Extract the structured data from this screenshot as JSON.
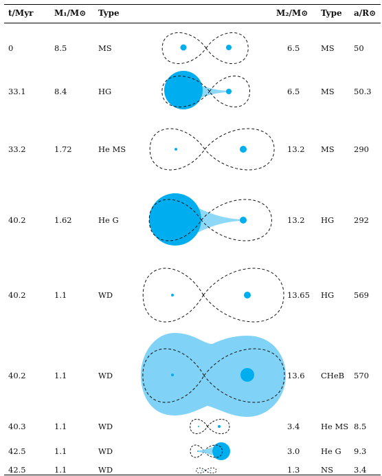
{
  "header": {
    "t": "t/Myr",
    "m1": "M₁/M⊙",
    "type1": "Type",
    "m2": "M₂/M⊙",
    "type2": "Type",
    "a": "a/R⊙"
  },
  "rows": [
    {
      "t": "0",
      "m1": "8.5",
      "type1": "MS",
      "m2": "6.5",
      "type2": "MS",
      "a": "50"
    },
    {
      "t": "33.1",
      "m1": "8.4",
      "type1": "HG",
      "m2": "6.5",
      "type2": "MS",
      "a": "50.3"
    },
    {
      "t": "33.2",
      "m1": "1.72",
      "type1": "He MS",
      "m2": "13.2",
      "type2": "MS",
      "a": "290"
    },
    {
      "t": "40.2",
      "m1": "1.62",
      "type1": "He G",
      "m2": "13.2",
      "type2": "HG",
      "a": "292"
    },
    {
      "t": "40.2",
      "m1": "1.1",
      "type1": "WD",
      "m2": "13.65",
      "type2": "HG",
      "a": "569"
    },
    {
      "t": "40.2",
      "m1": "1.1",
      "type1": "WD",
      "m2": "13.6",
      "type2": "CHeB",
      "a": "570"
    },
    {
      "t": "40.3",
      "m1": "1.1",
      "type1": "WD",
      "m2": "3.4",
      "type2": "He MS",
      "a": "8.5"
    },
    {
      "t": "42.5",
      "m1": "1.1",
      "type1": "WD",
      "m2": "3.0",
      "type2": "He G",
      "a": "9.3"
    },
    {
      "t": "42.5",
      "m1": "1.1",
      "type1": "WD",
      "m2": "1.3",
      "type2": "NS",
      "a": "3.4"
    }
  ],
  "colors": {
    "star": "#00aeef",
    "flow": "#7fd4f5",
    "envelope": "#80d3f7",
    "lobe_line": "#111111"
  }
}
